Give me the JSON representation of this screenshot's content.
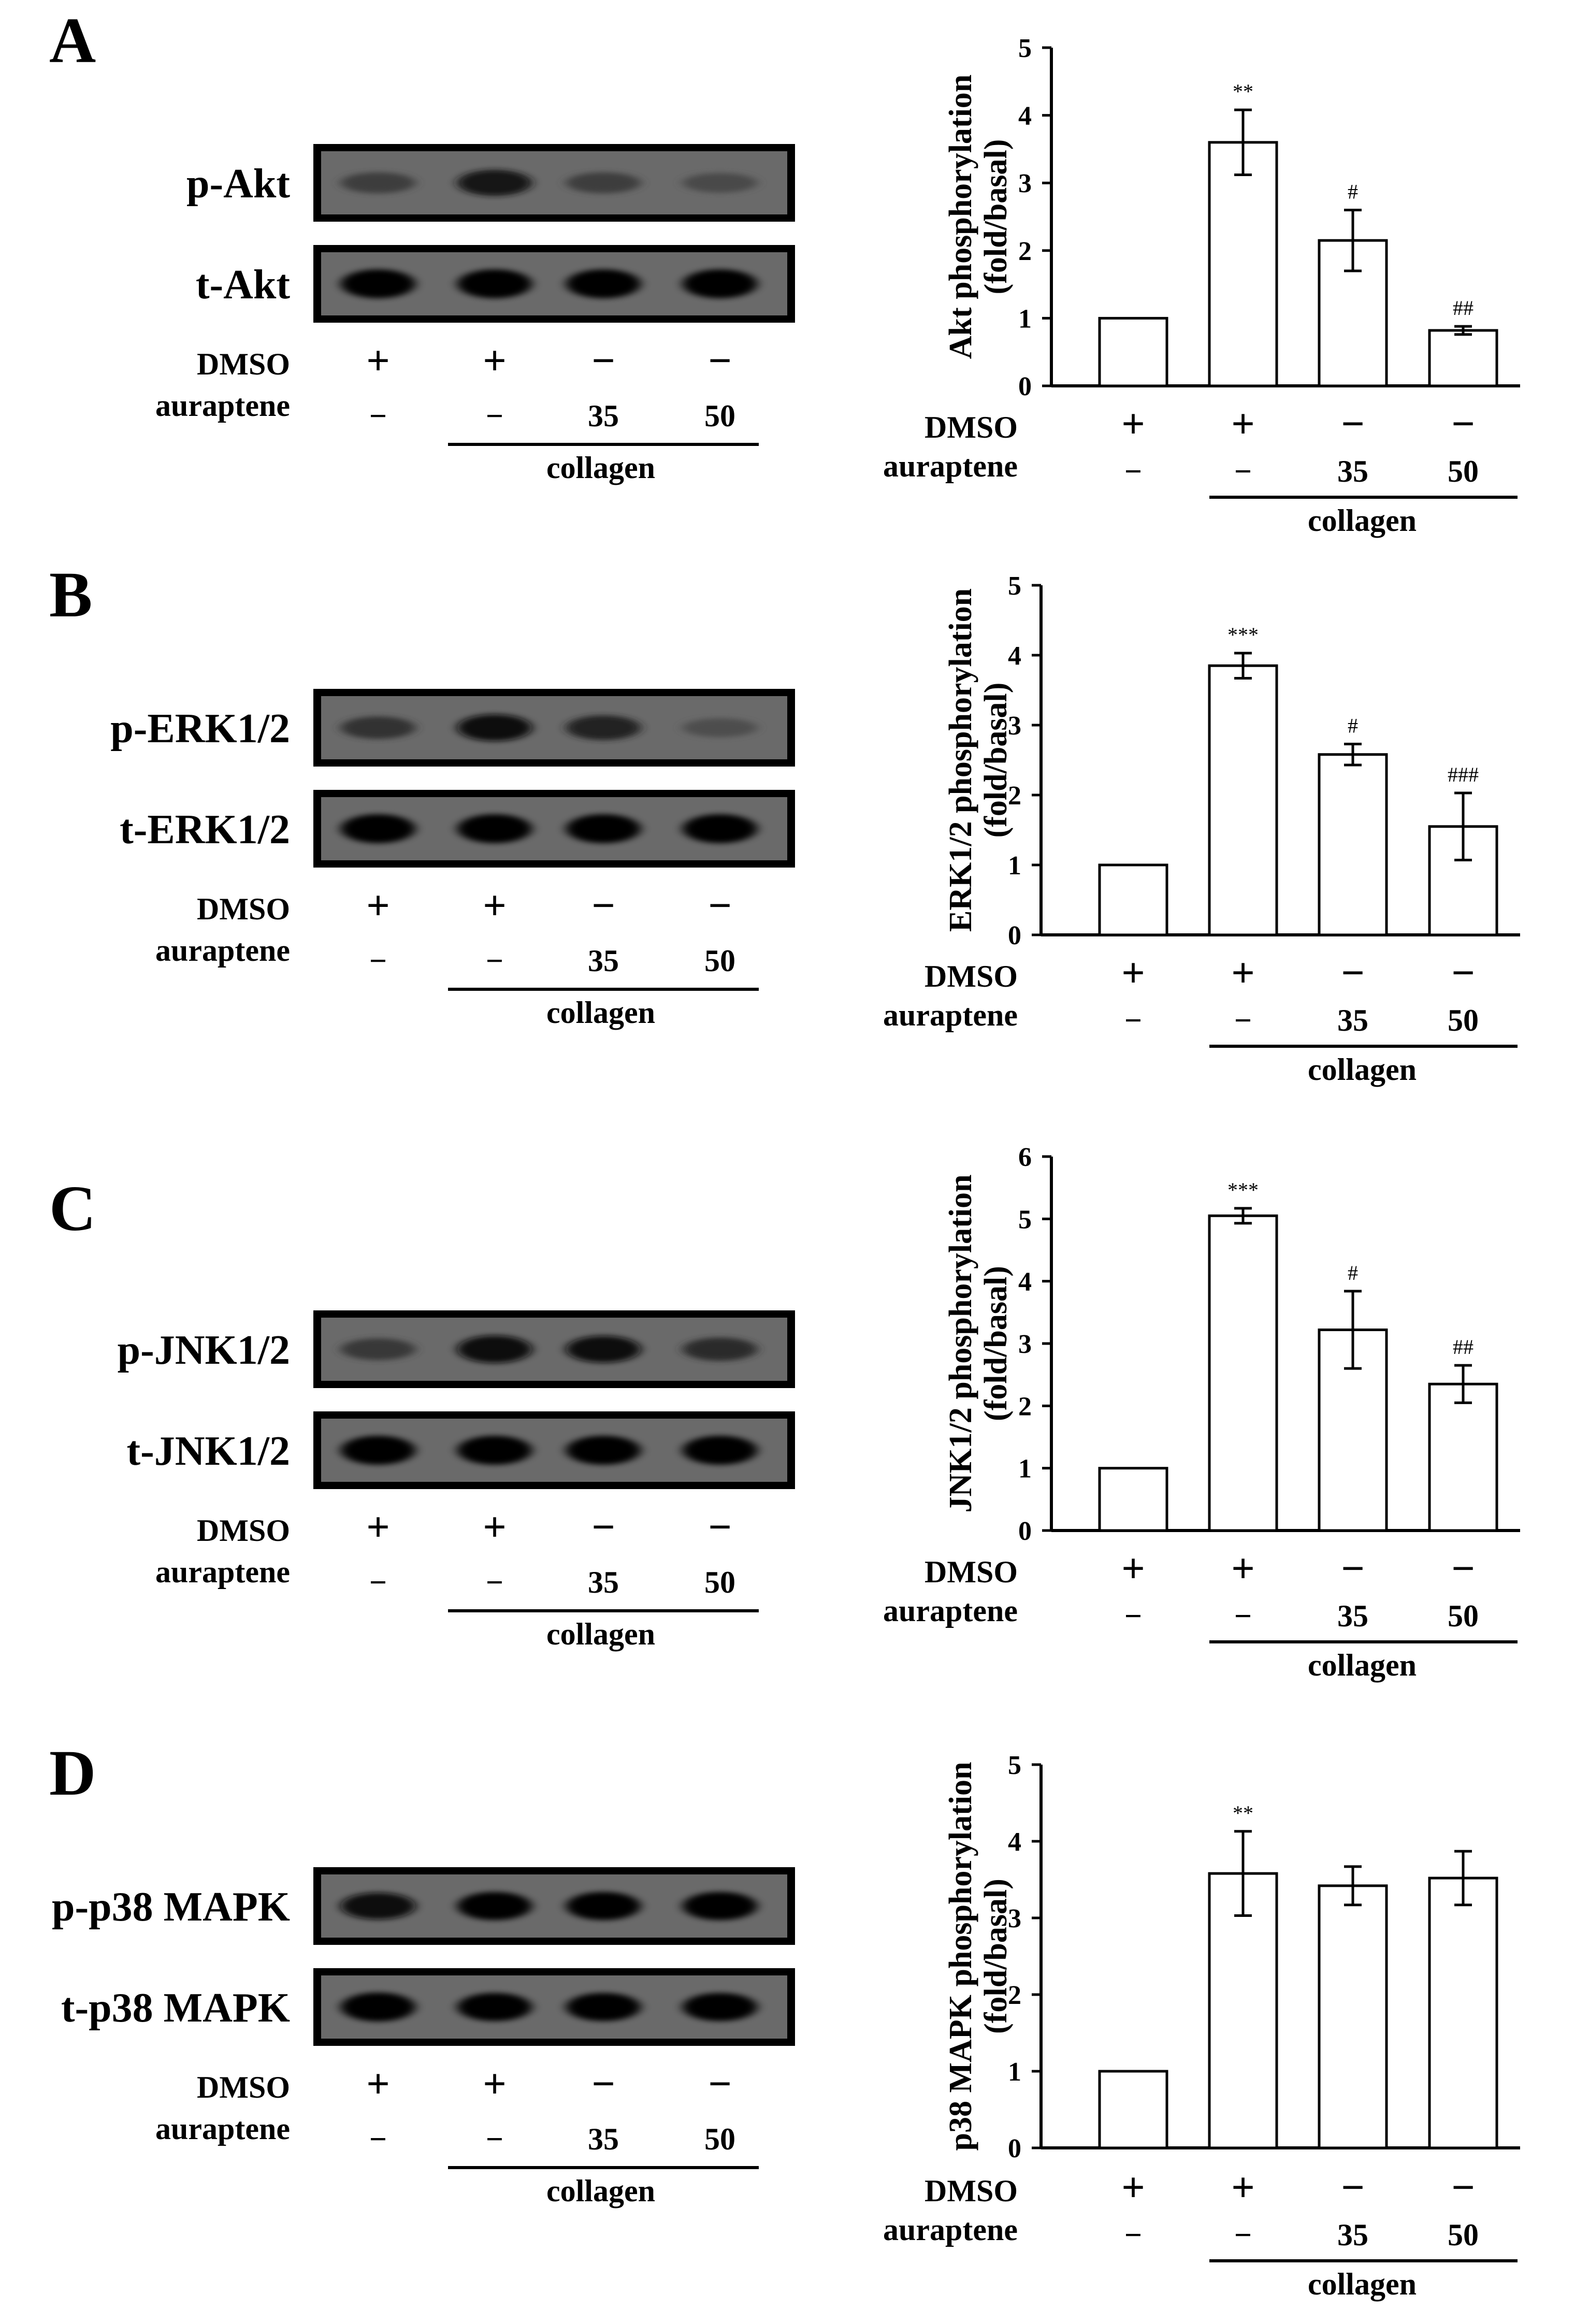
{
  "chart_data": [
    {
      "panel": "A",
      "type": "bar",
      "ylabel": [
        "Akt phosphorylation",
        "(fold/basal)"
      ],
      "ylim": [
        0,
        5
      ],
      "yticks": [
        "0",
        "1",
        "2",
        "3",
        "4",
        "5"
      ],
      "categories": [
        "DMSO",
        "collagen",
        "collagen + auraptene 35",
        "collagen + auraptene 50"
      ],
      "values": [
        1.0,
        3.6,
        2.15,
        0.82
      ],
      "errors": [
        0,
        0.48,
        0.45,
        0.06
      ],
      "significance": [
        "",
        "**",
        "#",
        "##"
      ],
      "blot": {
        "rows": [
          {
            "label": "p-Akt",
            "intensity": [
              0.45,
              0.8,
              0.45,
              0.35
            ]
          },
          {
            "label": "t-Akt",
            "intensity": [
              1,
              1,
              1,
              1
            ]
          }
        ]
      },
      "conditions": {
        "dmso_label": "DMSO",
        "dmso": [
          "+",
          "+",
          "−",
          "−"
        ],
        "auraptene_label": "auraptene",
        "auraptene": [
          "−",
          "−",
          "35",
          "50"
        ],
        "group_label": "collagen"
      }
    },
    {
      "panel": "B",
      "type": "bar",
      "ylabel": [
        "ERK1/2 phosphorylation",
        "(fold/basal)"
      ],
      "ylim": [
        0,
        5
      ],
      "yticks": [
        "0",
        "1",
        "2",
        "3",
        "4",
        "5"
      ],
      "categories": [
        "DMSO",
        "collagen",
        "collagen + auraptene 35",
        "collagen + auraptene 50"
      ],
      "values": [
        1.0,
        3.85,
        2.58,
        1.55
      ],
      "errors": [
        0,
        0.18,
        0.15,
        0.48
      ],
      "significance": [
        "",
        "***",
        "#",
        "###"
      ],
      "blot": {
        "rows": [
          {
            "label": "p-ERK1/2",
            "intensity": [
              0.55,
              0.85,
              0.7,
              0.3
            ]
          },
          {
            "label": "t-ERK1/2",
            "intensity": [
              1,
              1,
              1,
              1
            ]
          }
        ]
      },
      "conditions": {
        "dmso_label": "DMSO",
        "dmso": [
          "+",
          "+",
          "−",
          "−"
        ],
        "auraptene_label": "auraptene",
        "auraptene": [
          "−",
          "−",
          "35",
          "50"
        ],
        "group_label": "collagen"
      }
    },
    {
      "panel": "C",
      "type": "bar",
      "ylabel": [
        "JNK1/2 phosphorylation",
        "(fold/basal)"
      ],
      "ylim": [
        0,
        6
      ],
      "yticks": [
        "0",
        "1",
        "2",
        "3",
        "4",
        "5",
        "6"
      ],
      "categories": [
        "DMSO",
        "collagen",
        "collagen + auraptene 35",
        "collagen + auraptene 50"
      ],
      "values": [
        1.0,
        5.05,
        3.22,
        2.35
      ],
      "errors": [
        0,
        0.12,
        0.62,
        0.3
      ],
      "significance": [
        "",
        "***",
        "#",
        "##"
      ],
      "blot": {
        "rows": [
          {
            "label": "p-JNK1/2",
            "intensity": [
              0.5,
              0.9,
              0.85,
              0.6
            ]
          },
          {
            "label": "t-JNK1/2",
            "intensity": [
              1,
              1,
              1,
              1
            ]
          }
        ]
      },
      "conditions": {
        "dmso_label": "DMSO",
        "dmso": [
          "+",
          "+",
          "−",
          "−"
        ],
        "auraptene_label": "auraptene",
        "auraptene": [
          "−",
          "−",
          "35",
          "50"
        ],
        "group_label": "collagen"
      }
    },
    {
      "panel": "D",
      "type": "bar",
      "ylabel": [
        "p38 MAPK phosphorylation",
        "(fold/basal)"
      ],
      "ylim": [
        0,
        5
      ],
      "yticks": [
        "0",
        "1",
        "2",
        "3",
        "4",
        "5"
      ],
      "categories": [
        "DMSO",
        "collagen",
        "collagen + auraptene 35",
        "collagen + auraptene 50"
      ],
      "values": [
        1.0,
        3.58,
        3.42,
        3.52
      ],
      "errors": [
        0,
        0.55,
        0.25,
        0.35
      ],
      "significance": [
        "",
        "**",
        "",
        ""
      ],
      "blot": {
        "rows": [
          {
            "label": "p-p38 MAPK",
            "intensity": [
              0.85,
              0.95,
              0.95,
              0.95
            ]
          },
          {
            "label": "t-p38 MAPK",
            "intensity": [
              1,
              0.95,
              0.95,
              0.95
            ]
          }
        ]
      },
      "conditions": {
        "dmso_label": "DMSO",
        "dmso": [
          "+",
          "+",
          "−",
          "−"
        ],
        "auraptene_label": "auraptene",
        "auraptene": [
          "−",
          "−",
          "35",
          "50"
        ],
        "group_label": "collagen"
      }
    }
  ]
}
